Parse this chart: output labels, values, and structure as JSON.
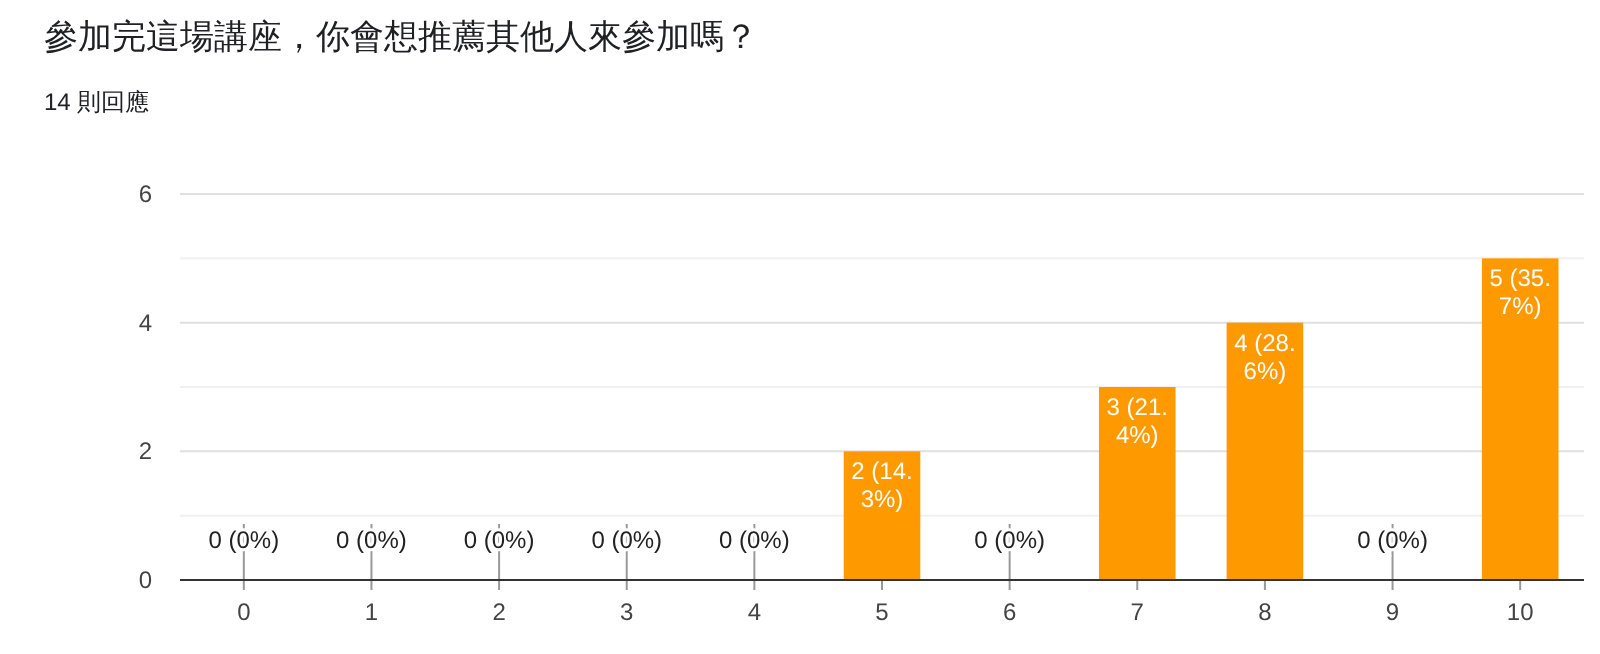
{
  "chart_data": {
    "type": "bar",
    "title": "參加完這場講座，你會想推薦其他人來參加嗎？",
    "subtitle": "14 則回應",
    "categories": [
      "0",
      "1",
      "2",
      "3",
      "4",
      "5",
      "6",
      "7",
      "8",
      "9",
      "10"
    ],
    "values": [
      0,
      0,
      0,
      0,
      0,
      2,
      0,
      3,
      4,
      0,
      5
    ],
    "value_labels": [
      "0 (0%)",
      "0 (0%)",
      "0 (0%)",
      "0 (0%)",
      "0 (0%)",
      "2 (14.3%)",
      "0 (0%)",
      "3 (21.4%)",
      "4 (28.6%)",
      "0 (0%)",
      "5 (35.7%)"
    ],
    "color": "#ff9900",
    "ylim": [
      0,
      6
    ],
    "yticks": [
      0,
      {
        "value": 1,
        "label": null
      },
      2,
      {
        "value": 3,
        "label": null
      },
      4,
      {
        "value": 5,
        "label": null
      },
      6
    ],
    "grid": "y"
  }
}
